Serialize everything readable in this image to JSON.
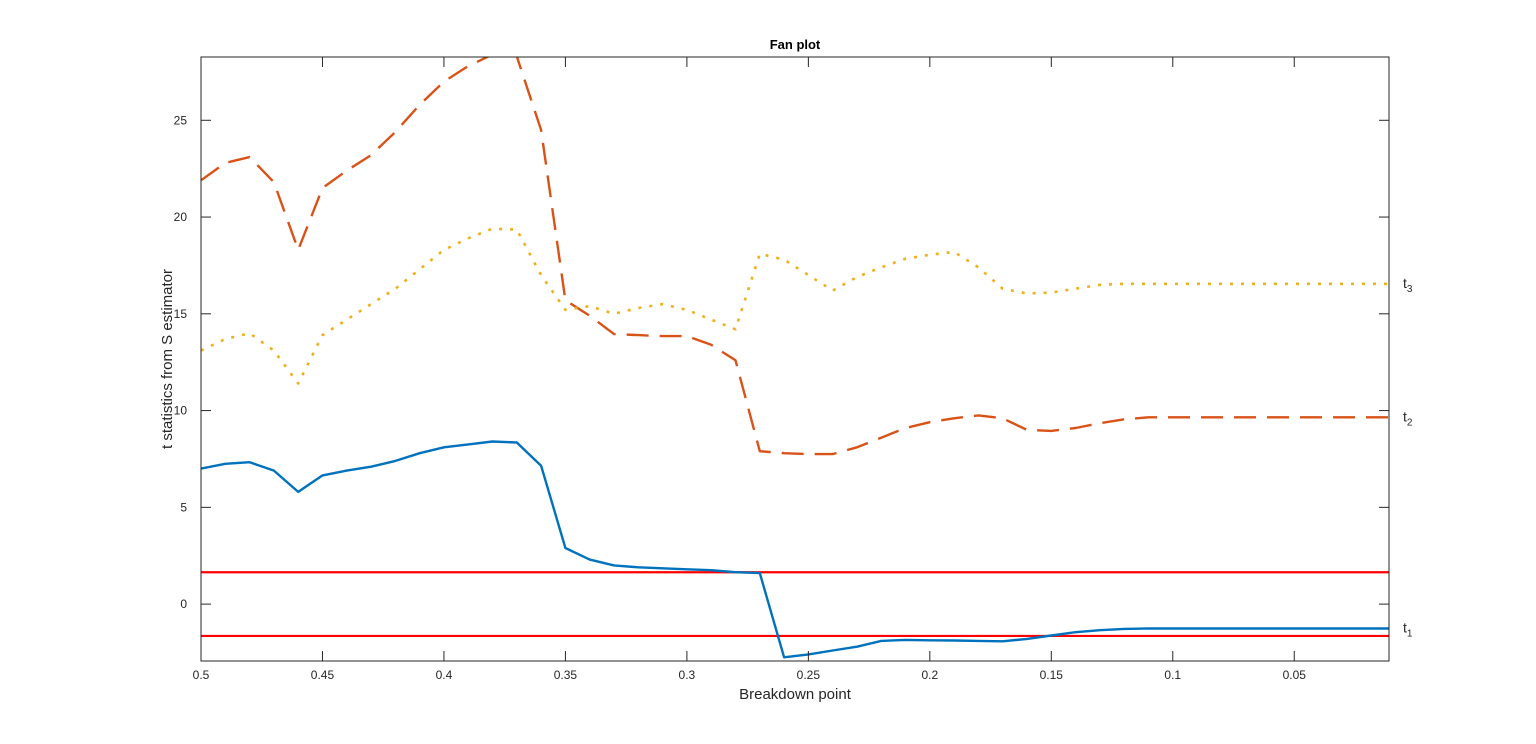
{
  "figure": {
    "title": "Fan plot",
    "xlabel": "Breakdown point",
    "ylabel": "t statistics from S estimator"
  },
  "chart_data": {
    "type": "line",
    "title": "Fan plot",
    "xlabel": "Breakdown point",
    "ylabel": "t statistics from S estimator",
    "x_reversed": true,
    "xlim": [
      0.5,
      0.011
    ],
    "ylim": [
      -2.94,
      28.27
    ],
    "grid": false,
    "legend": "none (series labels at right edge)",
    "x_ticks": [
      0.5,
      0.45,
      0.4,
      0.35,
      0.3,
      0.25,
      0.2,
      0.15,
      0.1,
      0.05
    ],
    "x_tick_labels": [
      "0.5",
      "0.45",
      "0.4",
      "0.35",
      "0.3",
      "0.25",
      "0.2",
      "0.15",
      "0.1",
      "0.05"
    ],
    "y_ticks": [
      0,
      5,
      10,
      15,
      20,
      25
    ],
    "y_tick_labels": [
      "0",
      "5",
      "10",
      "15",
      "20",
      "25"
    ],
    "x": [
      0.5,
      0.49,
      0.48,
      0.47,
      0.46,
      0.45,
      0.44,
      0.43,
      0.42,
      0.41,
      0.4,
      0.39,
      0.38,
      0.37,
      0.36,
      0.35,
      0.34,
      0.33,
      0.32,
      0.31,
      0.3,
      0.29,
      0.28,
      0.27,
      0.26,
      0.25,
      0.24,
      0.23,
      0.22,
      0.21,
      0.2,
      0.19,
      0.18,
      0.17,
      0.16,
      0.15,
      0.14,
      0.13,
      0.12,
      0.11,
      0.1,
      0.09,
      0.08,
      0.07,
      0.06,
      0.05,
      0.04,
      0.03,
      0.02,
      0.011
    ],
    "series": [
      {
        "name": "t1",
        "label_main": "t",
        "label_sub": "1",
        "color": "#0072BD",
        "style": "solid",
        "values": [
          7.0,
          7.25,
          7.33,
          6.9,
          5.8,
          6.65,
          6.9,
          7.1,
          7.4,
          7.8,
          8.1,
          8.25,
          8.4,
          8.35,
          7.15,
          2.9,
          2.3,
          2.0,
          1.9,
          1.85,
          1.8,
          1.75,
          1.65,
          1.6,
          -2.75,
          -2.6,
          -2.4,
          -2.2,
          -1.9,
          -1.85,
          -1.87,
          -1.88,
          -1.9,
          -1.92,
          -1.8,
          -1.62,
          -1.45,
          -1.35,
          -1.28,
          -1.26,
          -1.26,
          -1.26,
          -1.26,
          -1.26,
          -1.26,
          -1.26,
          -1.26,
          -1.26,
          -1.26,
          -1.26
        ]
      },
      {
        "name": "t2",
        "label_main": "t",
        "label_sub": "2",
        "color": "#D95319",
        "style": "dashed",
        "values": [
          21.9,
          22.8,
          23.1,
          21.8,
          18.3,
          21.5,
          22.4,
          23.2,
          24.4,
          25.8,
          27.0,
          27.8,
          28.4,
          28.3,
          24.5,
          15.7,
          14.9,
          13.95,
          13.9,
          13.85,
          13.85,
          13.4,
          12.6,
          7.9,
          7.8,
          7.75,
          7.75,
          8.1,
          8.6,
          9.1,
          9.4,
          9.6,
          9.75,
          9.6,
          9.0,
          8.95,
          9.1,
          9.35,
          9.55,
          9.65,
          9.65,
          9.65,
          9.65,
          9.65,
          9.65,
          9.65,
          9.65,
          9.65,
          9.65,
          9.65
        ]
      },
      {
        "name": "t3",
        "label_main": "t",
        "label_sub": "3",
        "color": "#EDB120",
        "style": "dotted",
        "values": [
          13.1,
          13.7,
          14.0,
          13.1,
          11.4,
          13.9,
          14.7,
          15.5,
          16.3,
          17.3,
          18.3,
          18.9,
          19.4,
          19.35,
          17.0,
          15.2,
          15.4,
          15.0,
          15.3,
          15.5,
          15.2,
          14.7,
          14.2,
          18.1,
          17.8,
          17.0,
          16.2,
          16.9,
          17.4,
          17.85,
          18.05,
          18.2,
          17.4,
          16.3,
          16.05,
          16.1,
          16.3,
          16.5,
          16.55,
          16.55,
          16.55,
          16.55,
          16.55,
          16.55,
          16.55,
          16.55,
          16.55,
          16.55,
          16.55,
          16.55
        ]
      }
    ],
    "reference_lines": [
      {
        "name": "upper-confidence-band",
        "y": 1.645,
        "color": "#FF0000"
      },
      {
        "name": "lower-confidence-band",
        "y": -1.645,
        "color": "#FF0000"
      }
    ]
  }
}
